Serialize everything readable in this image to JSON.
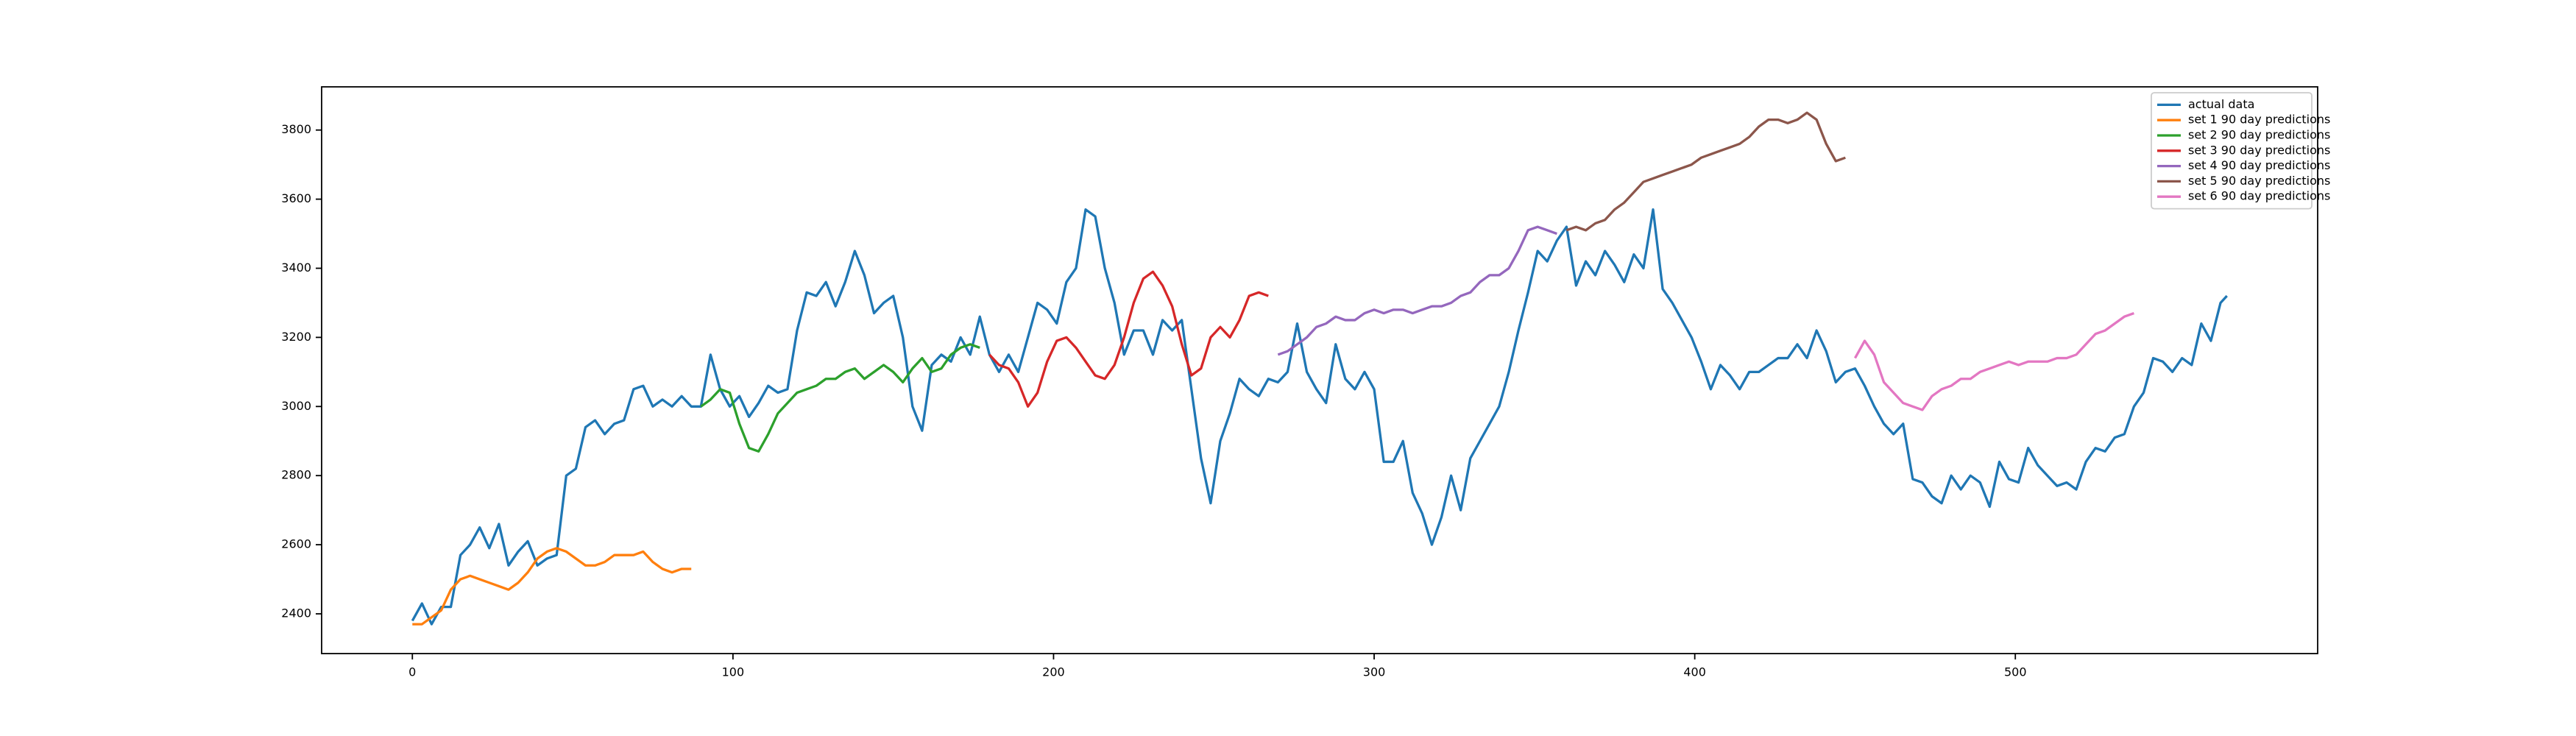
{
  "chart_data": {
    "type": "line",
    "xlim": [
      -28.3,
      594.3
    ],
    "ylim": [
      2285,
      3925
    ],
    "xticks": [
      0,
      100,
      200,
      300,
      400,
      500
    ],
    "yticks": [
      2400,
      2600,
      2800,
      3000,
      3200,
      3400,
      3600,
      3800
    ],
    "grid": false,
    "legend": "upper right",
    "series": [
      {
        "name": "actual data",
        "color": "#1f77b4",
        "x": [
          0,
          3,
          6,
          9,
          12,
          15,
          18,
          21,
          24,
          27,
          30,
          33,
          36,
          39,
          42,
          45,
          48,
          51,
          54,
          57,
          60,
          63,
          66,
          69,
          72,
          75,
          78,
          81,
          84,
          87,
          90,
          93,
          96,
          99,
          102,
          105,
          108,
          111,
          114,
          117,
          120,
          123,
          126,
          129,
          132,
          135,
          138,
          141,
          144,
          147,
          150,
          153,
          156,
          159,
          162,
          165,
          168,
          171,
          174,
          177,
          180,
          183,
          186,
          189,
          192,
          195,
          198,
          201,
          204,
          207,
          210,
          213,
          216,
          219,
          222,
          225,
          228,
          231,
          234,
          237,
          240,
          243,
          246,
          249,
          252,
          255,
          258,
          261,
          264,
          267,
          270,
          273,
          276,
          279,
          282,
          285,
          288,
          291,
          294,
          297,
          300,
          303,
          306,
          309,
          312,
          315,
          318,
          321,
          324,
          327,
          330,
          333,
          336,
          339,
          342,
          345,
          348,
          351,
          354,
          357,
          360,
          363,
          366,
          369,
          372,
          375,
          378,
          381,
          384,
          387,
          390,
          393,
          396,
          399,
          402,
          405,
          408,
          411,
          414,
          417,
          420,
          423,
          426,
          429,
          432,
          435,
          438,
          441,
          444,
          447,
          450,
          453,
          456,
          459,
          462,
          465,
          468,
          471,
          474,
          477,
          480,
          483,
          486,
          489,
          492,
          495,
          498,
          501,
          504,
          507,
          510,
          513,
          516,
          519,
          522,
          525,
          528,
          531,
          534,
          537,
          540,
          543,
          546,
          549,
          552,
          555,
          558,
          561,
          564,
          566
        ],
        "values": [
          2380,
          2430,
          2370,
          2420,
          2420,
          2570,
          2600,
          2650,
          2590,
          2660,
          2540,
          2580,
          2610,
          2540,
          2560,
          2570,
          2800,
          2820,
          2940,
          2960,
          2920,
          2950,
          2960,
          3050,
          3060,
          3000,
          3020,
          3000,
          3030,
          3000,
          3000,
          3150,
          3050,
          3000,
          3030,
          2970,
          3010,
          3060,
          3040,
          3050,
          3220,
          3330,
          3320,
          3360,
          3290,
          3360,
          3450,
          3380,
          3270,
          3300,
          3320,
          3200,
          3000,
          2930,
          3120,
          3150,
          3130,
          3200,
          3150,
          3260,
          3150,
          3100,
          3150,
          3100,
          3200,
          3300,
          3280,
          3240,
          3360,
          3400,
          3570,
          3550,
          3400,
          3300,
          3150,
          3220,
          3220,
          3150,
          3250,
          3220,
          3250,
          3050,
          2850,
          2720,
          2900,
          2980,
          3080,
          3050,
          3030,
          3080,
          3070,
          3100,
          3240,
          3100,
          3050,
          3010,
          3180,
          3080,
          3050,
          3100,
          3050,
          2840,
          2840,
          2900,
          2750,
          2690,
          2600,
          2680,
          2800,
          2700,
          2850,
          2900,
          2950,
          3000,
          3100,
          3220,
          3330,
          3450,
          3420,
          3480,
          3520,
          3350,
          3420,
          3380,
          3450,
          3410,
          3360,
          3440,
          3400,
          3570,
          3340,
          3300,
          3250,
          3200,
          3130,
          3050,
          3120,
          3090,
          3050,
          3100,
          3100,
          3120,
          3140,
          3140,
          3180,
          3140,
          3220,
          3160,
          3070,
          3100,
          3110,
          3060,
          3000,
          2950,
          2920,
          2950,
          2790,
          2780,
          2740,
          2720,
          2800,
          2760,
          2800,
          2780,
          2710,
          2840,
          2790,
          2780,
          2880,
          2830,
          2800,
          2770,
          2780,
          2760,
          2840,
          2880,
          2870,
          2910,
          2920,
          3000,
          3040,
          3140,
          3130,
          3100,
          3140,
          3120,
          3240,
          3190,
          3300,
          3320
        ]
      },
      {
        "name": "set 1 90 day predictions",
        "color": "#ff7f0e",
        "x": [
          0,
          3,
          6,
          9,
          12,
          15,
          18,
          21,
          24,
          27,
          30,
          33,
          36,
          39,
          42,
          45,
          48,
          51,
          54,
          57,
          60,
          63,
          66,
          69,
          72,
          75,
          78,
          81,
          84,
          87
        ],
        "values": [
          2370,
          2370,
          2390,
          2410,
          2470,
          2500,
          2510,
          2500,
          2490,
          2480,
          2470,
          2490,
          2520,
          2560,
          2580,
          2590,
          2580,
          2560,
          2540,
          2540,
          2550,
          2570,
          2570,
          2570,
          2580,
          2550,
          2530,
          2520,
          2530,
          2530
        ]
      },
      {
        "name": "set 2 90 day predictions",
        "color": "#2ca02c",
        "x": [
          90,
          93,
          96,
          99,
          102,
          105,
          108,
          111,
          114,
          117,
          120,
          123,
          126,
          129,
          132,
          135,
          138,
          141,
          144,
          147,
          150,
          153,
          156,
          159,
          162,
          165,
          168,
          171,
          174,
          177
        ],
        "values": [
          3000,
          3020,
          3050,
          3040,
          2950,
          2880,
          2870,
          2920,
          2980,
          3010,
          3040,
          3050,
          3060,
          3080,
          3080,
          3100,
          3110,
          3080,
          3100,
          3120,
          3100,
          3070,
          3110,
          3140,
          3100,
          3110,
          3150,
          3170,
          3180,
          3170
        ]
      },
      {
        "name": "set 3 90 day predictions",
        "color": "#d62728",
        "x": [
          180,
          183,
          186,
          189,
          192,
          195,
          198,
          201,
          204,
          207,
          210,
          213,
          216,
          219,
          222,
          225,
          228,
          231,
          234,
          237,
          240,
          243,
          246,
          249,
          252,
          255,
          258,
          261,
          264,
          267
        ],
        "values": [
          3150,
          3120,
          3110,
          3070,
          3000,
          3040,
          3130,
          3190,
          3200,
          3170,
          3130,
          3090,
          3080,
          3120,
          3200,
          3300,
          3370,
          3390,
          3350,
          3290,
          3180,
          3090,
          3110,
          3200,
          3230,
          3200,
          3250,
          3320,
          3330,
          3320
        ]
      },
      {
        "name": "set 4 90 day predictions",
        "color": "#9467bd",
        "x": [
          270,
          273,
          276,
          279,
          282,
          285,
          288,
          291,
          294,
          297,
          300,
          303,
          306,
          309,
          312,
          315,
          318,
          321,
          324,
          327,
          330,
          333,
          336,
          339,
          342,
          345,
          348,
          351,
          354,
          357
        ],
        "values": [
          3150,
          3160,
          3180,
          3200,
          3230,
          3240,
          3260,
          3250,
          3250,
          3270,
          3280,
          3270,
          3280,
          3280,
          3270,
          3280,
          3290,
          3290,
          3300,
          3320,
          3330,
          3360,
          3380,
          3380,
          3400,
          3450,
          3510,
          3520,
          3510,
          3500
        ]
      },
      {
        "name": "set 5 90 day predictions",
        "color": "#8c564b",
        "x": [
          360,
          363,
          366,
          369,
          372,
          375,
          378,
          381,
          384,
          387,
          390,
          393,
          396,
          399,
          402,
          405,
          408,
          411,
          414,
          417,
          420,
          423,
          426,
          429,
          432,
          435,
          438,
          441,
          444,
          447
        ],
        "values": [
          3510,
          3520,
          3510,
          3530,
          3540,
          3570,
          3590,
          3620,
          3650,
          3660,
          3670,
          3680,
          3690,
          3700,
          3720,
          3730,
          3740,
          3750,
          3760,
          3780,
          3810,
          3830,
          3830,
          3820,
          3830,
          3850,
          3830,
          3760,
          3710,
          3720
        ]
      },
      {
        "name": "set 6 90 day predictions",
        "color": "#e377c2",
        "x": [
          450,
          453,
          456,
          459,
          462,
          465,
          468,
          471,
          474,
          477,
          480,
          483,
          486,
          489,
          492,
          495,
          498,
          501,
          504,
          507,
          510,
          513,
          516,
          519,
          522,
          525,
          528,
          531,
          534,
          537
        ],
        "values": [
          3140,
          3190,
          3150,
          3070,
          3040,
          3010,
          3000,
          2990,
          3030,
          3050,
          3060,
          3080,
          3080,
          3100,
          3110,
          3120,
          3130,
          3120,
          3130,
          3130,
          3130,
          3140,
          3140,
          3150,
          3180,
          3210,
          3220,
          3240,
          3260,
          3270
        ]
      }
    ]
  }
}
